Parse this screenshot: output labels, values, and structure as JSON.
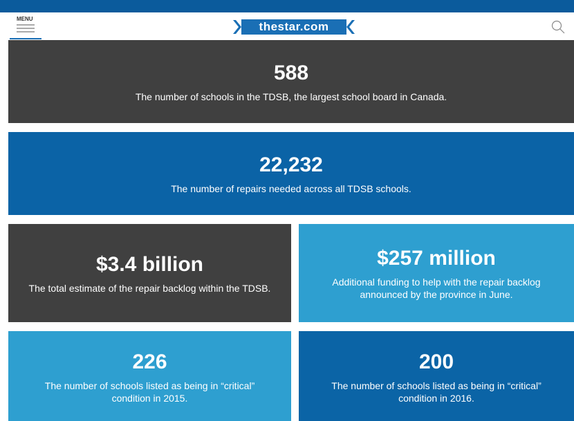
{
  "header": {
    "menu": "MENU",
    "logo": "thestar.com"
  },
  "stats": [
    {
      "value": "588",
      "description": "The number of schools in the TDSB, the largest school board in Canada."
    },
    {
      "value": "22,232",
      "description": "The number of repairs needed across all TDSB schools."
    },
    {
      "value": "$3.4 billion",
      "description": "The total estimate of the repair backlog within the TDSB."
    },
    {
      "value": "$257 million",
      "description": "Additional funding to help with the repair backlog announced by the province in June."
    },
    {
      "value": "226",
      "description": "The number of schools listed as being in “critical” condition in 2015."
    },
    {
      "value": "200",
      "description": "The number of schools listed as being in “critical” condition in 2016."
    }
  ]
}
